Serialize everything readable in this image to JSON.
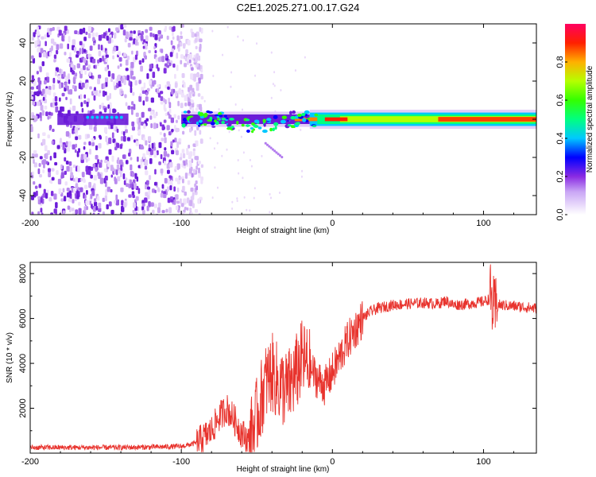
{
  "title": "C2E1.2025.271.00.17.G24",
  "chart_data": [
    {
      "type": "heatmap",
      "xlabel": "Height of straight line (km)",
      "ylabel": "Frequency (Hz)",
      "xlim": [
        -200,
        135
      ],
      "ylim": [
        -50,
        50
      ],
      "x_ticks": [
        "-200",
        "-100",
        "0",
        "100"
      ],
      "y_ticks": [
        "-40",
        "-20",
        "0",
        "20",
        "40"
      ],
      "colorbar": {
        "label": "Normalized spectral amplitude",
        "range": [
          0,
          1
        ],
        "ticks": [
          "0.0",
          "0.2",
          "0.4",
          "0.6",
          "0.8"
        ]
      },
      "description_series": {
        "noise_region_x": [
          -200,
          -87
        ],
        "signal_center_frequency_hz": 0,
        "strong_segments_x": [
          [
            -95,
            -15
          ],
          [
            0,
            135
          ]
        ]
      }
    },
    {
      "type": "line",
      "xlabel": "Height of straight line (km)",
      "ylabel": "SNR (10 * v/v)",
      "xlim": [
        -200,
        135
      ],
      "ylim": [
        0,
        8500
      ],
      "x_ticks": [
        "-200",
        "-100",
        "0",
        "100"
      ],
      "y_ticks": [
        "2000",
        "4000",
        "6000",
        "8000"
      ],
      "color": "#e8332d",
      "series": [
        {
          "name": "SNR",
          "x": [
            -200,
            -180,
            -160,
            -140,
            -120,
            -100,
            -90,
            -85,
            -80,
            -75,
            -70,
            -65,
            -60,
            -55,
            -50,
            -45,
            -40,
            -35,
            -30,
            -25,
            -20,
            -15,
            -10,
            -5,
            0,
            5,
            10,
            15,
            20,
            25,
            30,
            40,
            50,
            60,
            70,
            75,
            80,
            90,
            100,
            105,
            107,
            110,
            120,
            135
          ],
          "values": [
            250,
            250,
            250,
            250,
            270,
            300,
            450,
            700,
            1000,
            1600,
            2000,
            1500,
            900,
            500,
            1600,
            3000,
            3600,
            3000,
            2800,
            3400,
            4200,
            3800,
            3300,
            3000,
            3600,
            4300,
            5000,
            5500,
            6000,
            6300,
            6450,
            6600,
            6650,
            6700,
            6650,
            6800,
            6600,
            6650,
            6750,
            6900,
            6200,
            6600,
            6550,
            6450
          ]
        }
      ]
    }
  ]
}
